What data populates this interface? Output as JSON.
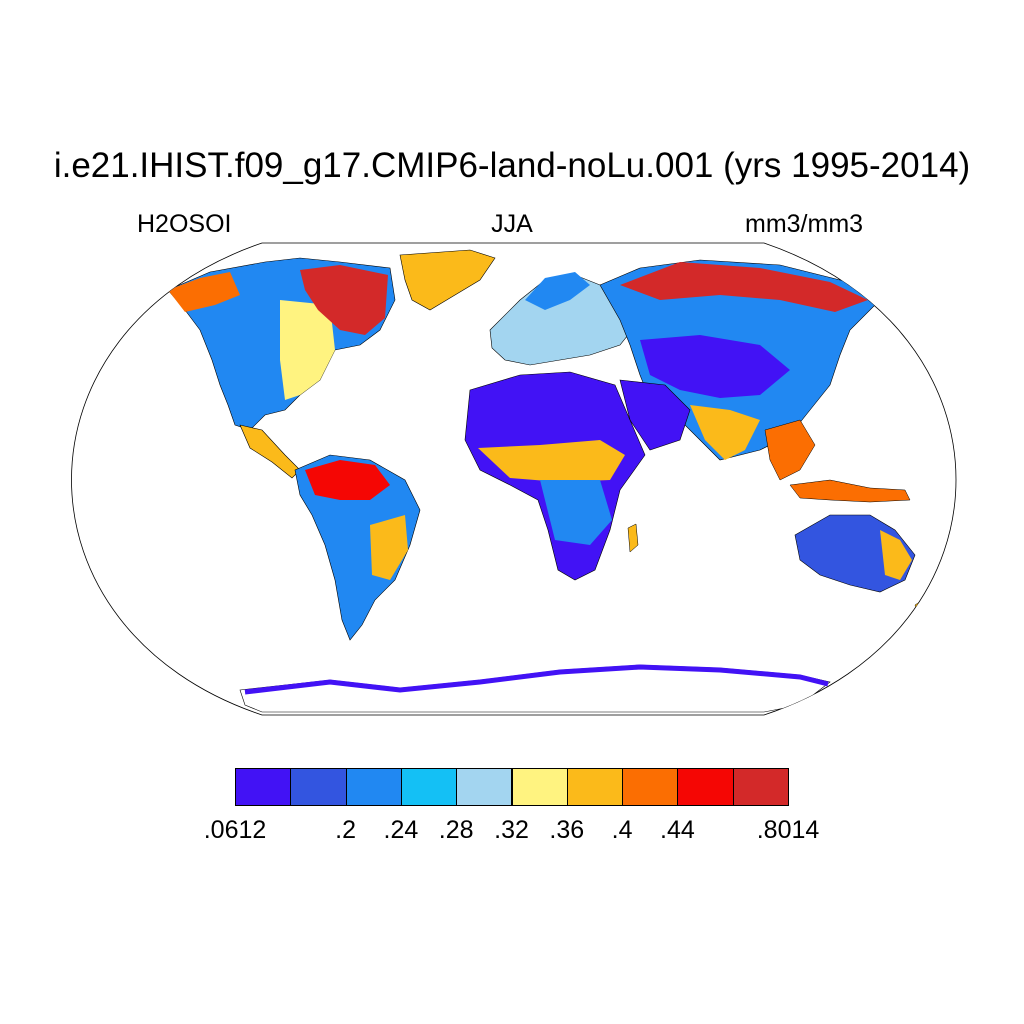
{
  "title": "i.e21.IHIST.f09_g17.CMIP6-land-noLu.001 (yrs 1995-2014)",
  "subtitle_left": "H2OSOI",
  "subtitle_center": "JJA",
  "subtitle_right": "mm3/mm3",
  "colorbar": {
    "colors": [
      "#4212f5",
      "#3355e0",
      "#2188f2",
      "#14c0f5",
      "#a3d5f0",
      "#fff380",
      "#fbba1a",
      "#fb6e02",
      "#f50604",
      "#d32929"
    ],
    "labels": [
      ".0612",
      ".2",
      ".24",
      ".28",
      ".32",
      ".36",
      ".4",
      ".44",
      ".8014"
    ],
    "label_boundaries": [
      0,
      2,
      3,
      4,
      5,
      6,
      7,
      8,
      10
    ]
  }
}
